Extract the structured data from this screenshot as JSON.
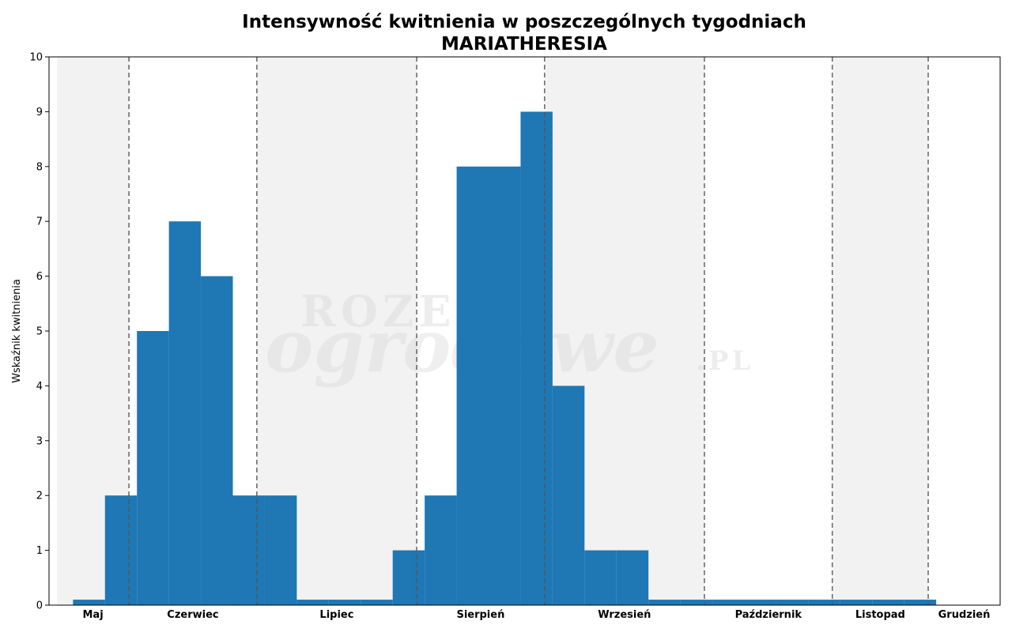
{
  "chart_data": {
    "type": "bar",
    "title": "Intensywność kwitnienia w poszczególnych tygodniach",
    "subtitle": "MARIATHERESIA",
    "ylabel": "Wskaźnik kwitnienia",
    "xlabel": "",
    "ylim": [
      0,
      10
    ],
    "yticks": [
      0,
      1,
      2,
      3,
      4,
      5,
      6,
      7,
      8,
      9,
      10
    ],
    "grid": false,
    "months": [
      {
        "label": "Maj",
        "shaded": true,
        "start_week": 0,
        "end_week": 2.25
      },
      {
        "label": "Czerwiec",
        "shaded": false,
        "start_week": 2.25,
        "end_week": 6.25
      },
      {
        "label": "Lipiec",
        "shaded": true,
        "start_week": 6.25,
        "end_week": 11.25
      },
      {
        "label": "Sierpień",
        "shaded": false,
        "start_week": 11.25,
        "end_week": 15.25
      },
      {
        "label": "Wrzesień",
        "shaded": true,
        "start_week": 15.25,
        "end_week": 20.25
      },
      {
        "label": "Październik",
        "shaded": false,
        "start_week": 20.25,
        "end_week": 24.25
      },
      {
        "label": "Listopad",
        "shaded": true,
        "start_week": 24.25,
        "end_week": 27.25
      },
      {
        "label": "Grudzień",
        "shaded": false,
        "start_week": 27.25,
        "end_week": 29.5
      }
    ],
    "series": [
      {
        "values": [
          0.1,
          2,
          5,
          7,
          6,
          2,
          2,
          0.1,
          0.1,
          0.1,
          1,
          2,
          8,
          8,
          9,
          4,
          1,
          1,
          0.1,
          0.1,
          0.1,
          0.1,
          0.1,
          0.1,
          0.1,
          0.1,
          0.1
        ],
        "color": "#1f77b4"
      }
    ]
  },
  "watermark": {
    "line1": "ROZE",
    "line2": "ogrodowe",
    "line3": ".PL"
  },
  "colors": {
    "bar": "#1f77b4",
    "shaded_band": "#f2f2f2",
    "month_divider": "#555555"
  }
}
